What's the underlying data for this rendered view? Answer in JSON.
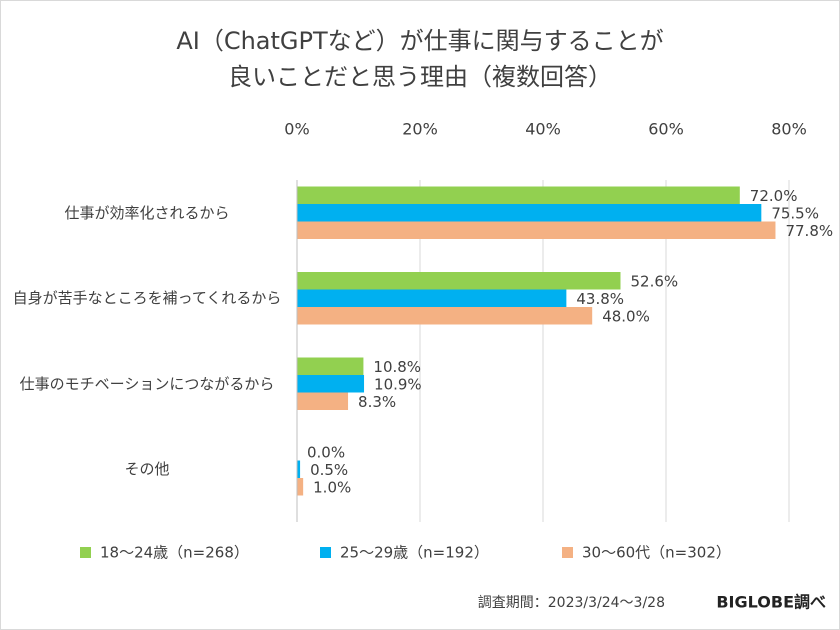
{
  "chart_data": {
    "type": "hbar",
    "title": [
      "AI（ChatGPTなど）が仕事に関与することが",
      "良いことだと思う理由（複数回答）"
    ],
    "categories": [
      "仕事が効率化されるから",
      "自身が苦手なところを補ってくれるから",
      "仕事のモチベーションにつながるから",
      "その他"
    ],
    "series": [
      {
        "name": "18〜24歳（n=268）",
        "color": "#92d050",
        "values": [
          72.0,
          52.6,
          10.8,
          0.0
        ],
        "value_labels": [
          "72.0%",
          "52.6%",
          "10.8%",
          "0.0%"
        ]
      },
      {
        "name": "25〜29歳（n=192）",
        "color": "#00b0f0",
        "values": [
          75.5,
          43.8,
          10.9,
          0.5
        ],
        "value_labels": [
          "75.5%",
          "43.8%",
          "10.9%",
          "0.5%"
        ]
      },
      {
        "name": "30〜60代（n=302）",
        "color": "#f4b183",
        "values": [
          77.8,
          48.0,
          8.3,
          1.0
        ],
        "value_labels": [
          "77.8%",
          "48.0%",
          "8.3%",
          "1.0%"
        ]
      }
    ],
    "xlim": [
      0,
      80
    ],
    "xticks": [
      {
        "value": 0,
        "label": "0%"
      },
      {
        "value": 20,
        "label": "20%"
      },
      {
        "value": 40,
        "label": "40%"
      },
      {
        "value": 60,
        "label": "60%"
      },
      {
        "value": 80,
        "label": "80%"
      }
    ],
    "grid": true,
    "legend": "bottom",
    "note": "調査期間：2023/3/24〜3/28",
    "source": "BIGLOBE調べ"
  }
}
